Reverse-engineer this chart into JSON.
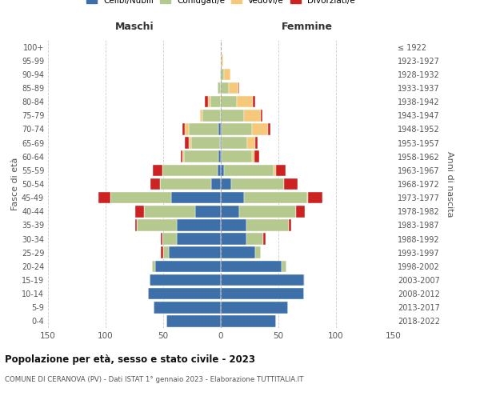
{
  "age_groups": [
    "0-4",
    "5-9",
    "10-14",
    "15-19",
    "20-24",
    "25-29",
    "30-34",
    "35-39",
    "40-44",
    "45-49",
    "50-54",
    "55-59",
    "60-64",
    "65-69",
    "70-74",
    "75-79",
    "80-84",
    "85-89",
    "90-94",
    "95-99",
    "100+"
  ],
  "birth_years": [
    "2018-2022",
    "2013-2017",
    "2008-2012",
    "2003-2007",
    "1998-2002",
    "1993-1997",
    "1988-1992",
    "1983-1987",
    "1978-1982",
    "1973-1977",
    "1968-1972",
    "1963-1967",
    "1958-1962",
    "1953-1957",
    "1948-1952",
    "1943-1947",
    "1938-1942",
    "1933-1937",
    "1928-1932",
    "1923-1927",
    "≤ 1922"
  ],
  "males": {
    "celibi": [
      47,
      58,
      63,
      62,
      57,
      45,
      38,
      38,
      22,
      43,
      8,
      3,
      2,
      1,
      2,
      0,
      0,
      0,
      0,
      0,
      0
    ],
    "coniugati": [
      0,
      0,
      0,
      0,
      3,
      5,
      13,
      35,
      45,
      53,
      45,
      48,
      30,
      25,
      26,
      16,
      9,
      3,
      1,
      0,
      0
    ],
    "vedovi": [
      0,
      0,
      0,
      0,
      0,
      0,
      0,
      0,
      0,
      0,
      0,
      0,
      1,
      2,
      3,
      2,
      2,
      0,
      0,
      0,
      0
    ],
    "divorziati": [
      0,
      0,
      0,
      0,
      0,
      2,
      1,
      1,
      7,
      10,
      8,
      8,
      2,
      3,
      2,
      0,
      3,
      0,
      0,
      0,
      0
    ]
  },
  "females": {
    "nubili": [
      48,
      58,
      72,
      72,
      53,
      30,
      22,
      22,
      16,
      20,
      9,
      3,
      1,
      1,
      1,
      0,
      0,
      0,
      0,
      0,
      0
    ],
    "coniugate": [
      0,
      0,
      0,
      1,
      4,
      5,
      15,
      37,
      49,
      55,
      46,
      43,
      26,
      22,
      26,
      20,
      14,
      7,
      3,
      1,
      0
    ],
    "vedove": [
      0,
      0,
      0,
      0,
      0,
      0,
      0,
      0,
      0,
      1,
      0,
      2,
      2,
      7,
      14,
      15,
      14,
      8,
      5,
      1,
      0
    ],
    "divorziate": [
      0,
      0,
      0,
      0,
      0,
      0,
      2,
      2,
      8,
      12,
      12,
      8,
      4,
      2,
      2,
      1,
      2,
      1,
      0,
      0,
      0
    ]
  },
  "colors": {
    "celibi": "#3d6fa8",
    "coniugati": "#b5c98e",
    "vedovi": "#f5c87a",
    "divorziati": "#cc2222"
  },
  "title": "Popolazione per età, sesso e stato civile - 2023",
  "subtitle": "COMUNE DI CERANOVA (PV) - Dati ISTAT 1° gennaio 2023 - Elaborazione TUTTITALIA.IT",
  "xlabel_left": "Maschi",
  "xlabel_right": "Femmine",
  "ylabel_left": "Fasce di età",
  "ylabel_right": "Anni di nascita",
  "xlim": 150,
  "legend_labels": [
    "Celibi/Nubili",
    "Coniugati/e",
    "Vedovi/e",
    "Divorziati/e"
  ]
}
